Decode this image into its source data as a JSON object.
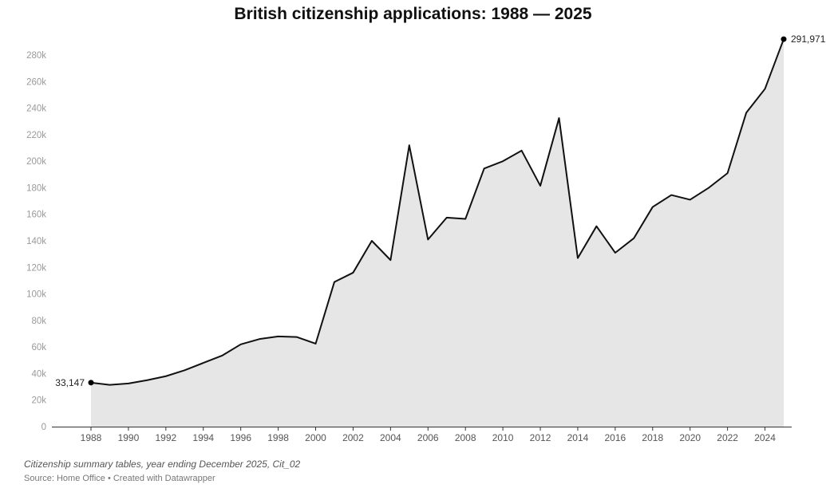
{
  "chart_data": {
    "type": "area",
    "title": "British citizenship applications: 1988 — 2025",
    "xlabel": "",
    "ylabel": "",
    "x": [
      1988,
      1989,
      1990,
      1991,
      1992,
      1993,
      1994,
      1995,
      1996,
      1997,
      1998,
      1999,
      2000,
      2001,
      2002,
      2003,
      2004,
      2005,
      2006,
      2007,
      2008,
      2009,
      2010,
      2011,
      2012,
      2013,
      2014,
      2015,
      2016,
      2017,
      2018,
      2019,
      2020,
      2021,
      2022,
      2023,
      2024,
      2025
    ],
    "values": [
      33147,
      31500,
      32500,
      35000,
      38000,
      42500,
      48000,
      53500,
      62000,
      66000,
      68000,
      67500,
      62500,
      109000,
      116000,
      140000,
      125500,
      212000,
      141000,
      157500,
      156500,
      194500,
      200000,
      208000,
      181500,
      232500,
      127000,
      151000,
      131000,
      142000,
      165500,
      174500,
      171000,
      180000,
      191000,
      236500,
      254500,
      291971
    ],
    "ylim": [
      0,
      290000
    ],
    "xlim": [
      1988,
      2025
    ],
    "yticks": [
      "0",
      "20k",
      "40k",
      "60k",
      "80k",
      "100k",
      "120k",
      "140k",
      "160k",
      "180k",
      "200k",
      "220k",
      "240k",
      "260k",
      "280k"
    ],
    "ytick_values": [
      0,
      20000,
      40000,
      60000,
      80000,
      100000,
      120000,
      140000,
      160000,
      180000,
      200000,
      220000,
      240000,
      260000,
      280000
    ],
    "xticks": [
      "1988",
      "1990",
      "1992",
      "1994",
      "1996",
      "1998",
      "2000",
      "2002",
      "2004",
      "2006",
      "2008",
      "2010",
      "2012",
      "2014",
      "2016",
      "2018",
      "2020",
      "2022",
      "2024"
    ],
    "xtick_values": [
      1988,
      1990,
      1992,
      1994,
      1996,
      1998,
      2000,
      2002,
      2004,
      2006,
      2008,
      2010,
      2012,
      2014,
      2016,
      2018,
      2020,
      2022,
      2024
    ],
    "start_label": "33,147",
    "end_label": "291,971",
    "grid": false,
    "line_color": "#111111",
    "fill_color": "#e6e6e6"
  },
  "footer": {
    "note": "Citizenship summary tables, year ending December 2025, Cit_02",
    "source": "Source: Home Office • Created with Datawrapper"
  }
}
